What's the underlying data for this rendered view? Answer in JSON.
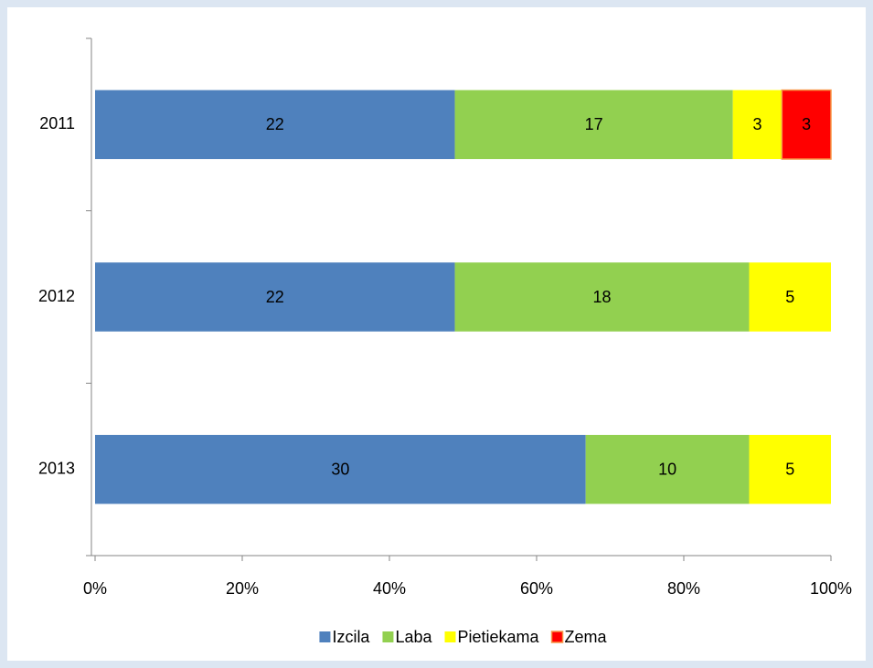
{
  "chart_data": {
    "type": "bar",
    "orientation": "horizontal",
    "stacking": "percent",
    "categories": [
      "2011",
      "2012",
      "2013"
    ],
    "series": [
      {
        "name": "Izcila",
        "color": "#4f81bd",
        "values": [
          22,
          22,
          30
        ]
      },
      {
        "name": "Laba",
        "color": "#92d050",
        "values": [
          17,
          18,
          10
        ]
      },
      {
        "name": "Pietiekama",
        "color": "#ffff00",
        "values": [
          3,
          5,
          5
        ]
      },
      {
        "name": "Zema",
        "color": "#ff0000",
        "values": [
          3,
          null,
          null
        ]
      }
    ],
    "xlim": [
      0,
      100
    ],
    "xticks": [
      {
        "value": 0,
        "label": "0%"
      },
      {
        "value": 20,
        "label": "20%"
      },
      {
        "value": 40,
        "label": "40%"
      },
      {
        "value": 60,
        "label": "60%"
      },
      {
        "value": 80,
        "label": "80%"
      },
      {
        "value": 100,
        "label": "100%"
      }
    ],
    "legend": "bottom"
  }
}
